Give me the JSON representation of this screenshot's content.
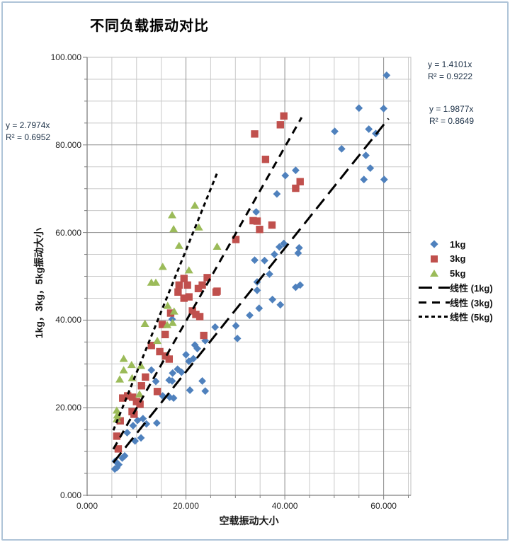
{
  "window": {
    "background": "#FFFFFF",
    "border_color": "#AFC4D8"
  },
  "title": "不同负载振动对比",
  "equations": {
    "kg1": {
      "line1": "y = 1.4101x",
      "line2": "R² = 0.9222"
    },
    "kg3": {
      "line1": "y = 1.9877x",
      "line2": "R² = 0.8649"
    },
    "kg5": {
      "line1": "y = 2.7974x",
      "line2": "R² = 0.6952"
    }
  },
  "legend": {
    "items": [
      {
        "label": "1kg",
        "marker": "diamond",
        "color": "#4F81BD"
      },
      {
        "label": "3kg",
        "marker": "square",
        "color": "#C0504D"
      },
      {
        "label": "5kg",
        "marker": "triangle",
        "color": "#9BBB59"
      },
      {
        "label": "线性 (1kg)",
        "line_dash": "long-dash",
        "color": "#000000"
      },
      {
        "label": "线性 (3kg)",
        "line_dash": "medium-dash",
        "color": "#000000"
      },
      {
        "label": "线性 (5kg)",
        "line_dash": "short-dash",
        "color": "#000000"
      }
    ]
  },
  "chart_data": {
    "type": "scatter",
    "title": "不同负载振动对比",
    "xlabel": "空载振动大小",
    "ylabel": "1kg，3kg，5kg振动大小",
    "xlim": [
      0,
      65.5
    ],
    "ylim": [
      0,
      100
    ],
    "x_ticks": [
      "0.000",
      "20.000",
      "40.000",
      "60.000"
    ],
    "y_ticks": [
      "0.000",
      "20.000",
      "40.000",
      "60.000",
      "80.000",
      "100.000"
    ],
    "tick_major_step": 20,
    "grid_minor_step": 5,
    "grid": {
      "minor_color": "#CACACA",
      "major_color": "#8C8C8C",
      "axis_color": "#7F7F7F",
      "border_color": "#BFBFBF"
    },
    "series": [
      {
        "name": "1kg",
        "marker": "diamond",
        "color": "#4F81BD",
        "points": [
          [
            5.6,
            6.0
          ],
          [
            6.0,
            6.3
          ],
          [
            6.4,
            7.0
          ],
          [
            5.7,
            7.8
          ],
          [
            7.1,
            8.5
          ],
          [
            7.6,
            9.0
          ],
          [
            9.7,
            12.4
          ],
          [
            10.9,
            13.1
          ],
          [
            8.1,
            14.3
          ],
          [
            9.3,
            15.9
          ],
          [
            10.2,
            17.1
          ],
          [
            11.3,
            17.5
          ],
          [
            12.0,
            16.3
          ],
          [
            14.1,
            16.5
          ],
          [
            15.3,
            22.7
          ],
          [
            16.7,
            22.4
          ],
          [
            17.5,
            22.2
          ],
          [
            20.8,
            24.0
          ],
          [
            13.9,
            26.0
          ],
          [
            16.6,
            26.3
          ],
          [
            17.2,
            26.1
          ],
          [
            23.3,
            26.1
          ],
          [
            23.9,
            23.8
          ],
          [
            13.0,
            28.6
          ],
          [
            17.3,
            27.9
          ],
          [
            18.3,
            28.8
          ],
          [
            19.1,
            28.1
          ],
          [
            20.6,
            30.6
          ],
          [
            21.5,
            31.2
          ],
          [
            20.0,
            32.1
          ],
          [
            22.3,
            33.5
          ],
          [
            21.8,
            34.3
          ],
          [
            23.9,
            35.3
          ],
          [
            25.9,
            38.4
          ],
          [
            30.4,
            35.8
          ],
          [
            30.1,
            38.7
          ],
          [
            32.9,
            41.1
          ],
          [
            17.2,
            40.2
          ],
          [
            34.8,
            42.7
          ],
          [
            39.1,
            43.5
          ],
          [
            37.5,
            44.7
          ],
          [
            34.4,
            46.8
          ],
          [
            34.4,
            48.7
          ],
          [
            42.2,
            47.5
          ],
          [
            43.1,
            48.0
          ],
          [
            36.9,
            50.5
          ],
          [
            33.9,
            53.7
          ],
          [
            35.9,
            53.6
          ],
          [
            37.9,
            55.0
          ],
          [
            38.9,
            56.7
          ],
          [
            39.8,
            57.5
          ],
          [
            42.7,
            55.3
          ],
          [
            42.9,
            56.5
          ],
          [
            34.2,
            64.7
          ],
          [
            38.4,
            68.8
          ],
          [
            40.1,
            73.0
          ],
          [
            42.2,
            74.2
          ],
          [
            50.1,
            83.1
          ],
          [
            51.5,
            79.1
          ],
          [
            55.0,
            88.4
          ],
          [
            57.0,
            83.6
          ],
          [
            58.4,
            82.6
          ],
          [
            60.0,
            88.3
          ],
          [
            56.4,
            77.6
          ],
          [
            57.3,
            74.7
          ],
          [
            56.0,
            72.1
          ],
          [
            60.1,
            72.1
          ],
          [
            60.6,
            95.9
          ]
        ]
      },
      {
        "name": "3kg",
        "marker": "square",
        "color": "#C0504D",
        "points": [
          [
            6.3,
            10.6
          ],
          [
            6.0,
            13.5
          ],
          [
            6.7,
            17.0
          ],
          [
            9.5,
            18.5
          ],
          [
            9.1,
            19.1
          ],
          [
            10.7,
            20.8
          ],
          [
            10.0,
            21.4
          ],
          [
            7.2,
            22.2
          ],
          [
            8.2,
            22.7
          ],
          [
            9.2,
            22.4
          ],
          [
            11.0,
            25.0
          ],
          [
            11.8,
            27.0
          ],
          [
            14.2,
            23.7
          ],
          [
            13.0,
            34.2
          ],
          [
            14.7,
            32.8
          ],
          [
            15.9,
            31.8
          ],
          [
            16.6,
            31.1
          ],
          [
            15.8,
            36.7
          ],
          [
            15.2,
            39.0
          ],
          [
            23.6,
            36.5
          ],
          [
            16.9,
            41.6
          ],
          [
            21.3,
            42.1
          ],
          [
            22.0,
            41.3
          ],
          [
            22.8,
            40.8
          ],
          [
            19.6,
            45.0
          ],
          [
            20.6,
            45.3
          ],
          [
            18.4,
            46.4
          ],
          [
            26.1,
            46.4
          ],
          [
            26.3,
            46.6
          ],
          [
            22.5,
            47.2
          ],
          [
            18.6,
            48.0
          ],
          [
            20.3,
            48.0
          ],
          [
            23.3,
            48.0
          ],
          [
            19.6,
            49.5
          ],
          [
            24.3,
            49.7
          ],
          [
            30.1,
            58.4
          ],
          [
            34.9,
            60.7
          ],
          [
            37.4,
            61.7
          ],
          [
            34.4,
            62.6
          ],
          [
            33.6,
            62.7
          ],
          [
            42.2,
            70.1
          ],
          [
            43.1,
            71.6
          ],
          [
            36.1,
            76.7
          ],
          [
            33.9,
            82.5
          ],
          [
            39.1,
            84.6
          ],
          [
            39.8,
            86.6
          ]
        ]
      },
      {
        "name": "5kg",
        "marker": "triangle",
        "color": "#9BBB59",
        "points": [
          [
            6.0,
            17.4
          ],
          [
            6.1,
            18.3
          ],
          [
            6.0,
            19.4
          ],
          [
            10.6,
            23.1
          ],
          [
            6.6,
            26.5
          ],
          [
            9.1,
            26.8
          ],
          [
            7.4,
            28.6
          ],
          [
            10.9,
            29.6
          ],
          [
            9.0,
            29.8
          ],
          [
            7.4,
            31.2
          ],
          [
            14.2,
            35.3
          ],
          [
            16.2,
            38.9
          ],
          [
            11.7,
            39.2
          ],
          [
            17.3,
            39.4
          ],
          [
            17.6,
            42.0
          ],
          [
            16.3,
            43.3
          ],
          [
            13.0,
            48.6
          ],
          [
            13.9,
            48.6
          ],
          [
            15.3,
            52.2
          ],
          [
            20.6,
            51.4
          ],
          [
            18.6,
            57.0
          ],
          [
            26.3,
            56.8
          ],
          [
            17.5,
            60.8
          ],
          [
            22.6,
            61.2
          ],
          [
            17.2,
            64.0
          ],
          [
            21.8,
            66.2
          ]
        ]
      }
    ],
    "trendlines": [
      {
        "name": "线性 (1kg)",
        "equation": "y = 1.4101x",
        "r2": 0.9222,
        "slope": 1.4101,
        "x_range": [
          5.3,
          61.0
        ],
        "dash": [
          18,
          9
        ],
        "width": 3,
        "color": "#000000"
      },
      {
        "name": "线性 (3kg)",
        "equation": "y = 1.9877x",
        "r2": 0.8649,
        "slope": 1.9877,
        "x_range": [
          5.3,
          43.4
        ],
        "dash": [
          11,
          8
        ],
        "width": 3,
        "color": "#000000"
      },
      {
        "name": "线性 (5kg)",
        "equation": "y = 2.7974x",
        "r2": 0.6952,
        "slope": 2.7974,
        "x_range": [
          5.3,
          26.3
        ],
        "dash": [
          6,
          5
        ],
        "width": 3,
        "color": "#000000"
      }
    ],
    "legend_position": "right"
  }
}
